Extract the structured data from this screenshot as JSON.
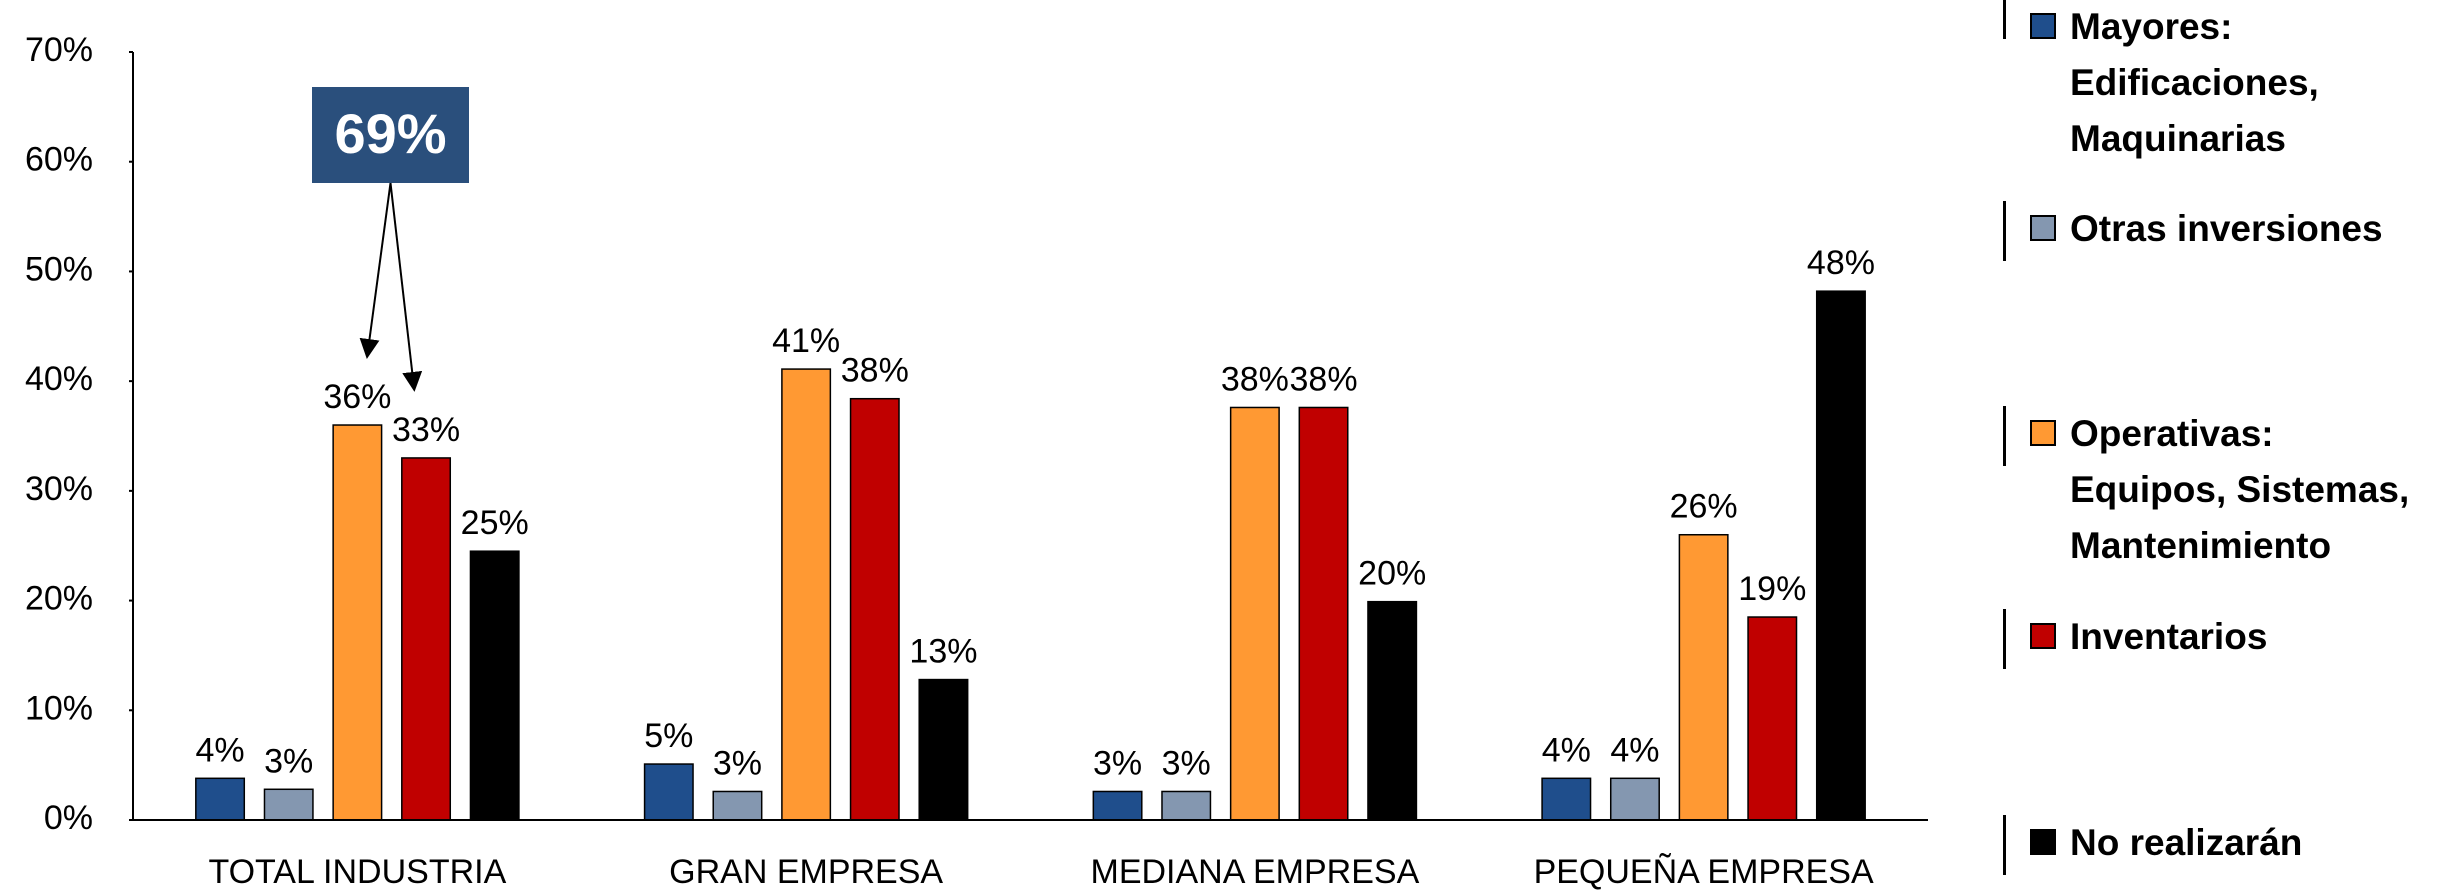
{
  "chart_data": {
    "type": "bar",
    "categories": [
      "TOTAL INDUSTRIA",
      "GRAN EMPRESA",
      "MEDIANA EMPRESA",
      "PEQUEÑA EMPRESA"
    ],
    "series": [
      {
        "name": "Mayores: Edificaciones, Maquinarias",
        "color": "#1f4e8c",
        "values": [
          3.8,
          5.1,
          2.6,
          3.8
        ],
        "value_labels": [
          "4%",
          "5%",
          "3%",
          "4%"
        ]
      },
      {
        "name": "Otras inversiones",
        "color": "#8497b0",
        "values": [
          2.8,
          2.6,
          2.6,
          3.8
        ],
        "value_labels": [
          "3%",
          "3%",
          "3%",
          "4%"
        ]
      },
      {
        "name": "Operativas: Equipos, Sistemas, Mantenimiento",
        "color": "#ff9933",
        "values": [
          36.0,
          41.1,
          37.6,
          26.0
        ],
        "value_labels": [
          "36%",
          "41%",
          "38%",
          "26%"
        ]
      },
      {
        "name": "Inventarios",
        "color": "#c00000",
        "values": [
          33.0,
          38.4,
          37.6,
          18.5
        ],
        "value_labels": [
          "33%",
          "38%",
          "38%",
          "19%"
        ]
      },
      {
        "name": "No realizarán",
        "color": "#000000",
        "values": [
          24.5,
          12.8,
          19.9,
          48.2
        ],
        "value_labels": [
          "25%",
          "13%",
          "20%",
          "48%"
        ]
      }
    ],
    "ylim": [
      0,
      70
    ],
    "yticks": [
      {
        "value": 0,
        "label": "0%"
      },
      {
        "value": 10,
        "label": "10%"
      },
      {
        "value": 20,
        "label": "20%"
      },
      {
        "value": 30,
        "label": "30%"
      },
      {
        "value": 40,
        "label": "40%"
      },
      {
        "value": 50,
        "label": "50%"
      },
      {
        "value": 60,
        "label": "60%"
      },
      {
        "value": 70,
        "label": "70%"
      }
    ],
    "annotation": "69%"
  }
}
